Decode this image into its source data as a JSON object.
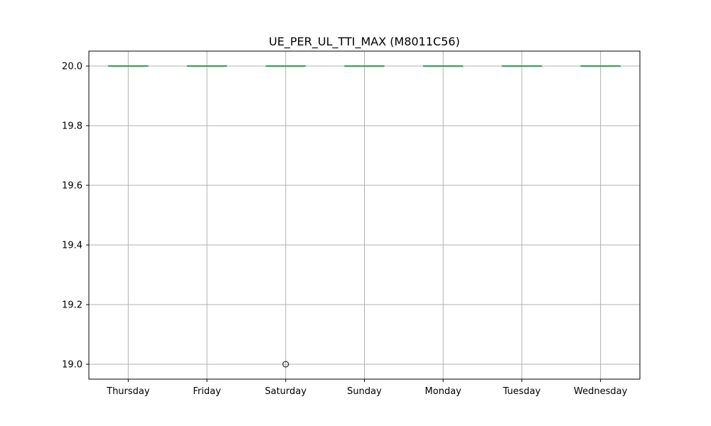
{
  "chart_data": {
    "type": "box",
    "title": "UE_PER_UL_TTI_MAX (M8011C56)",
    "xlabel": "",
    "ylabel": "",
    "categories": [
      "Thursday",
      "Friday",
      "Saturday",
      "Sunday",
      "Monday",
      "Tuesday",
      "Wednesday"
    ],
    "series": [
      {
        "boxes": [
          {
            "category": "Thursday",
            "whislo": 20.0,
            "q1": 20.0,
            "median": 20.0,
            "q3": 20.0,
            "whishi": 20.0,
            "fliers": []
          },
          {
            "category": "Friday",
            "whislo": 20.0,
            "q1": 20.0,
            "median": 20.0,
            "q3": 20.0,
            "whishi": 20.0,
            "fliers": []
          },
          {
            "category": "Saturday",
            "whislo": 20.0,
            "q1": 20.0,
            "median": 20.0,
            "q3": 20.0,
            "whishi": 20.0,
            "fliers": [
              19.0
            ]
          },
          {
            "category": "Sunday",
            "whislo": 20.0,
            "q1": 20.0,
            "median": 20.0,
            "q3": 20.0,
            "whishi": 20.0,
            "fliers": []
          },
          {
            "category": "Monday",
            "whislo": 20.0,
            "q1": 20.0,
            "median": 20.0,
            "q3": 20.0,
            "whishi": 20.0,
            "fliers": []
          },
          {
            "category": "Tuesday",
            "whislo": 20.0,
            "q1": 20.0,
            "median": 20.0,
            "q3": 20.0,
            "whishi": 20.0,
            "fliers": []
          },
          {
            "category": "Wednesday",
            "whislo": 20.0,
            "q1": 20.0,
            "median": 20.0,
            "q3": 20.0,
            "whishi": 20.0,
            "fliers": []
          }
        ]
      }
    ],
    "ylim": [
      18.95,
      20.05
    ],
    "yticks": [
      19.0,
      19.2,
      19.4,
      19.6,
      19.8,
      20.0
    ],
    "ytick_labels": [
      "19.0",
      "19.2",
      "19.4",
      "19.6",
      "19.8",
      "20.0"
    ],
    "grid": true,
    "colors": {
      "box": "#1f77b4",
      "median": "#2ca02c",
      "grid": "#b0b0b0",
      "flier_edge": "#000000",
      "axes": "#000000"
    }
  }
}
